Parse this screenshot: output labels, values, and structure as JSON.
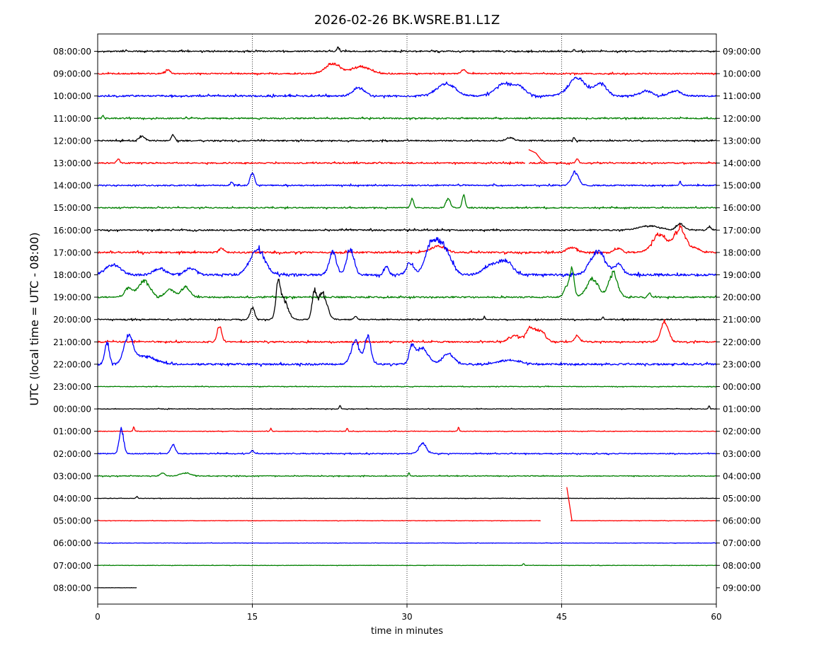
{
  "chart_data": {
    "type": "line",
    "title": "2026-02-26 BK.WSRE.B1.L1Z",
    "xlabel": "time in minutes",
    "ylabel": "UTC (local time = UTC - 08:00)",
    "xlim": [
      0,
      60
    ],
    "x_ticks": [
      0,
      15,
      30,
      45,
      60
    ],
    "vertical_gridlines": [
      15,
      30,
      45
    ],
    "grid_style": "dotted",
    "trace_colors": [
      "#000000",
      "#ff0000",
      "#0000ff",
      "#008000"
    ],
    "left_labels": [
      "08:00:00",
      "09:00:00",
      "10:00:00",
      "11:00:00",
      "12:00:00",
      "13:00:00",
      "14:00:00",
      "15:00:00",
      "16:00:00",
      "17:00:00",
      "18:00:00",
      "19:00:00",
      "20:00:00",
      "21:00:00",
      "22:00:00",
      "23:00:00",
      "00:00:00",
      "01:00:00",
      "02:00:00",
      "03:00:00",
      "04:00:00",
      "05:00:00",
      "06:00:00",
      "07:00:00",
      "08:00:00"
    ],
    "right_labels": [
      "09:00:00",
      "10:00:00",
      "11:00:00",
      "12:00:00",
      "13:00:00",
      "14:00:00",
      "15:00:00",
      "16:00:00",
      "17:00:00",
      "18:00:00",
      "19:00:00",
      "20:00:00",
      "21:00:00",
      "22:00:00",
      "23:00:00",
      "00:00:00",
      "01:00:00",
      "02:00:00",
      "03:00:00",
      "04:00:00",
      "05:00:00",
      "06:00:00",
      "07:00:00",
      "08:00:00",
      "09:00:00"
    ],
    "traces": [
      {
        "row": 0,
        "color": "#000000",
        "amplitude": 0.07,
        "seed": 11,
        "end": 60,
        "events": [
          [
            23.3,
            0.2,
            0.15
          ],
          [
            46.2,
            0.08,
            0.1
          ]
        ]
      },
      {
        "row": 1,
        "color": "#ff0000",
        "amplitude": 0.07,
        "seed": 12,
        "end": 60,
        "events": [
          [
            6.8,
            0.2,
            0.3
          ],
          [
            22.8,
            0.5,
            1.0
          ],
          [
            25.5,
            0.35,
            1.2
          ],
          [
            35.5,
            0.2,
            0.3
          ]
        ]
      },
      {
        "row": 2,
        "color": "#0000ff",
        "amplitude": 0.09,
        "seed": 13,
        "end": 60,
        "events": [
          [
            25.3,
            0.4,
            0.8
          ],
          [
            33.8,
            0.6,
            1.3
          ],
          [
            39.5,
            0.6,
            1.3
          ],
          [
            41.0,
            0.35,
            0.8
          ],
          [
            46.5,
            0.9,
            1.2
          ],
          [
            48.8,
            0.6,
            0.8
          ],
          [
            53.2,
            0.25,
            0.8
          ],
          [
            56.0,
            0.25,
            0.8
          ]
        ]
      },
      {
        "row": 3,
        "color": "#008000",
        "amplitude": 0.07,
        "seed": 14,
        "end": 60,
        "events": [
          [
            0.5,
            0.15,
            0.1
          ]
        ]
      },
      {
        "row": 4,
        "color": "#000000",
        "amplitude": 0.07,
        "seed": 15,
        "end": 60,
        "events": [
          [
            4.3,
            0.2,
            0.4
          ],
          [
            7.3,
            0.3,
            0.2
          ],
          [
            40.0,
            0.15,
            0.5
          ],
          [
            46.2,
            0.2,
            0.1
          ]
        ]
      },
      {
        "row": 5,
        "color": "#ff0000",
        "amplitude": 0.07,
        "seed": 16,
        "end": 60,
        "events": [
          [
            2.0,
            0.2,
            0.2
          ],
          [
            46.5,
            0.2,
            0.2
          ]
        ],
        "gap": [
          41.5,
          41.8
        ],
        "extra": [
          [
            41.8,
            0.6
          ],
          [
            42.5,
            0.45
          ],
          [
            43.0,
            0.15
          ],
          [
            43.5,
            0.0
          ]
        ]
      },
      {
        "row": 6,
        "color": "#0000ff",
        "amplitude": 0.07,
        "seed": 17,
        "end": 60,
        "events": [
          [
            15.0,
            0.6,
            0.3
          ],
          [
            46.3,
            0.65,
            0.5
          ],
          [
            13.0,
            0.15,
            0.2
          ],
          [
            56.5,
            0.2,
            0.1
          ]
        ]
      },
      {
        "row": 7,
        "color": "#008000",
        "amplitude": 0.06,
        "seed": 18,
        "end": 60,
        "events": [
          [
            30.5,
            0.45,
            0.2
          ],
          [
            34.0,
            0.45,
            0.3
          ],
          [
            35.5,
            0.65,
            0.2
          ]
        ]
      },
      {
        "row": 8,
        "color": "#000000",
        "amplitude": 0.07,
        "seed": 19,
        "end": 60,
        "events": [
          [
            53.5,
            0.2,
            1.5
          ],
          [
            56.5,
            0.3,
            0.5
          ],
          [
            59.3,
            0.2,
            0.2
          ]
        ]
      },
      {
        "row": 9,
        "color": "#ff0000",
        "amplitude": 0.09,
        "seed": 20,
        "end": 60,
        "events": [
          [
            12.0,
            0.2,
            0.4
          ],
          [
            33.0,
            0.3,
            1.0
          ],
          [
            46.0,
            0.25,
            0.7
          ],
          [
            50.5,
            0.2,
            0.5
          ],
          [
            54.5,
            0.9,
            1.0
          ],
          [
            56.5,
            1.2,
            0.8
          ],
          [
            58.0,
            0.2,
            0.5
          ]
        ]
      },
      {
        "row": 10,
        "color": "#0000ff",
        "amplitude": 0.12,
        "seed": 21,
        "end": 60,
        "events": [
          [
            1.5,
            0.5,
            1.0
          ],
          [
            6.0,
            0.3,
            0.8
          ],
          [
            9.0,
            0.3,
            0.8
          ],
          [
            15.5,
            1.3,
            1.0
          ],
          [
            22.8,
            1.1,
            0.5
          ],
          [
            24.5,
            1.3,
            0.5
          ],
          [
            28.0,
            0.4,
            0.3
          ],
          [
            30.3,
            0.6,
            0.5
          ],
          [
            32.3,
            1.3,
            0.8
          ],
          [
            33.5,
            1.4,
            1.0
          ],
          [
            38.0,
            0.4,
            1.0
          ],
          [
            39.5,
            0.7,
            1.0
          ],
          [
            48.5,
            1.2,
            1.0
          ],
          [
            50.5,
            0.5,
            0.6
          ]
        ]
      },
      {
        "row": 11,
        "color": "#008000",
        "amplitude": 0.08,
        "seed": 22,
        "end": 60,
        "events": [
          [
            3.0,
            0.45,
            0.5
          ],
          [
            4.5,
            0.8,
            0.8
          ],
          [
            7.0,
            0.4,
            0.6
          ],
          [
            8.5,
            0.5,
            0.6
          ],
          [
            45.5,
            0.5,
            0.4
          ],
          [
            46.0,
            1.3,
            0.3
          ],
          [
            50.0,
            1.2,
            0.6
          ],
          [
            48.0,
            0.9,
            0.8
          ],
          [
            53.5,
            0.2,
            0.2
          ]
        ]
      },
      {
        "row": 12,
        "color": "#000000",
        "amplitude": 0.06,
        "seed": 23,
        "end": 60,
        "events": [
          [
            15.0,
            0.6,
            0.3
          ],
          [
            17.5,
            1.4,
            0.3
          ],
          [
            18.0,
            1.0,
            0.6
          ],
          [
            21.0,
            1.2,
            0.3
          ],
          [
            21.8,
            1.3,
            0.6
          ],
          [
            25.0,
            0.15,
            0.2
          ],
          [
            37.5,
            0.15,
            0.1
          ],
          [
            49.0,
            0.15,
            0.1
          ]
        ]
      },
      {
        "row": 13,
        "color": "#ff0000",
        "amplitude": 0.08,
        "seed": 24,
        "end": 60,
        "events": [
          [
            11.8,
            0.8,
            0.3
          ],
          [
            40.5,
            0.3,
            0.8
          ],
          [
            42.0,
            0.7,
            0.6
          ],
          [
            43.0,
            0.5,
            0.6
          ],
          [
            46.5,
            0.3,
            0.3
          ],
          [
            55.0,
            1.0,
            0.5
          ]
        ]
      },
      {
        "row": 14,
        "color": "#0000ff",
        "amplitude": 0.1,
        "seed": 25,
        "end": 60,
        "events": [
          [
            0.9,
            1.1,
            0.3
          ],
          [
            3.0,
            1.3,
            0.6
          ],
          [
            4.5,
            0.4,
            1.5
          ],
          [
            25.0,
            1.1,
            0.6
          ],
          [
            26.2,
            1.4,
            0.4
          ],
          [
            30.5,
            0.8,
            0.4
          ],
          [
            31.5,
            0.8,
            0.8
          ],
          [
            34.0,
            0.5,
            0.8
          ],
          [
            40.0,
            0.2,
            1.5
          ]
        ]
      },
      {
        "row": 15,
        "color": "#008000",
        "amplitude": 0.03,
        "seed": 26,
        "end": 60,
        "events": []
      },
      {
        "row": 16,
        "color": "#000000",
        "amplitude": 0.03,
        "seed": 27,
        "end": 60,
        "events": [
          [
            23.5,
            0.2,
            0.1
          ],
          [
            59.3,
            0.15,
            0.1
          ]
        ]
      },
      {
        "row": 17,
        "color": "#ff0000",
        "amplitude": 0.03,
        "seed": 28,
        "end": 60,
        "events": [
          [
            3.5,
            0.2,
            0.1
          ],
          [
            16.8,
            0.15,
            0.1
          ],
          [
            24.2,
            0.15,
            0.1
          ],
          [
            35.0,
            0.2,
            0.1
          ]
        ]
      },
      {
        "row": 18,
        "color": "#0000ff",
        "amplitude": 0.05,
        "seed": 29,
        "end": 60,
        "events": [
          [
            2.3,
            1.2,
            0.3
          ],
          [
            7.3,
            0.45,
            0.3
          ],
          [
            31.5,
            0.5,
            0.5
          ],
          [
            15.0,
            0.15,
            0.2
          ]
        ]
      },
      {
        "row": 19,
        "color": "#008000",
        "amplitude": 0.04,
        "seed": 30,
        "end": 60,
        "events": [
          [
            6.3,
            0.15,
            0.3
          ],
          [
            8.5,
            0.15,
            0.7
          ],
          [
            30.2,
            0.15,
            0.1
          ]
        ]
      },
      {
        "row": 20,
        "color": "#000000",
        "amplitude": 0.02,
        "seed": 31,
        "end": 60,
        "events": [
          [
            3.8,
            0.1,
            0.1
          ]
        ]
      },
      {
        "row": 21,
        "color": "#ff0000",
        "amplitude": 0.02,
        "seed": 32,
        "end": 60,
        "events": [],
        "gap": [
          43.0,
          45.8
        ],
        "extra": [
          [
            45.5,
            1.5
          ],
          [
            46.0,
            0.0
          ]
        ]
      },
      {
        "row": 22,
        "color": "#0000ff",
        "amplitude": 0.02,
        "seed": 33,
        "end": 60,
        "events": []
      },
      {
        "row": 23,
        "color": "#008000",
        "amplitude": 0.02,
        "seed": 34,
        "end": 60,
        "events": [
          [
            41.3,
            0.1,
            0.1
          ]
        ]
      },
      {
        "row": 24,
        "color": "#000000",
        "amplitude": 0.01,
        "seed": 35,
        "end": 3.8,
        "events": []
      }
    ]
  }
}
